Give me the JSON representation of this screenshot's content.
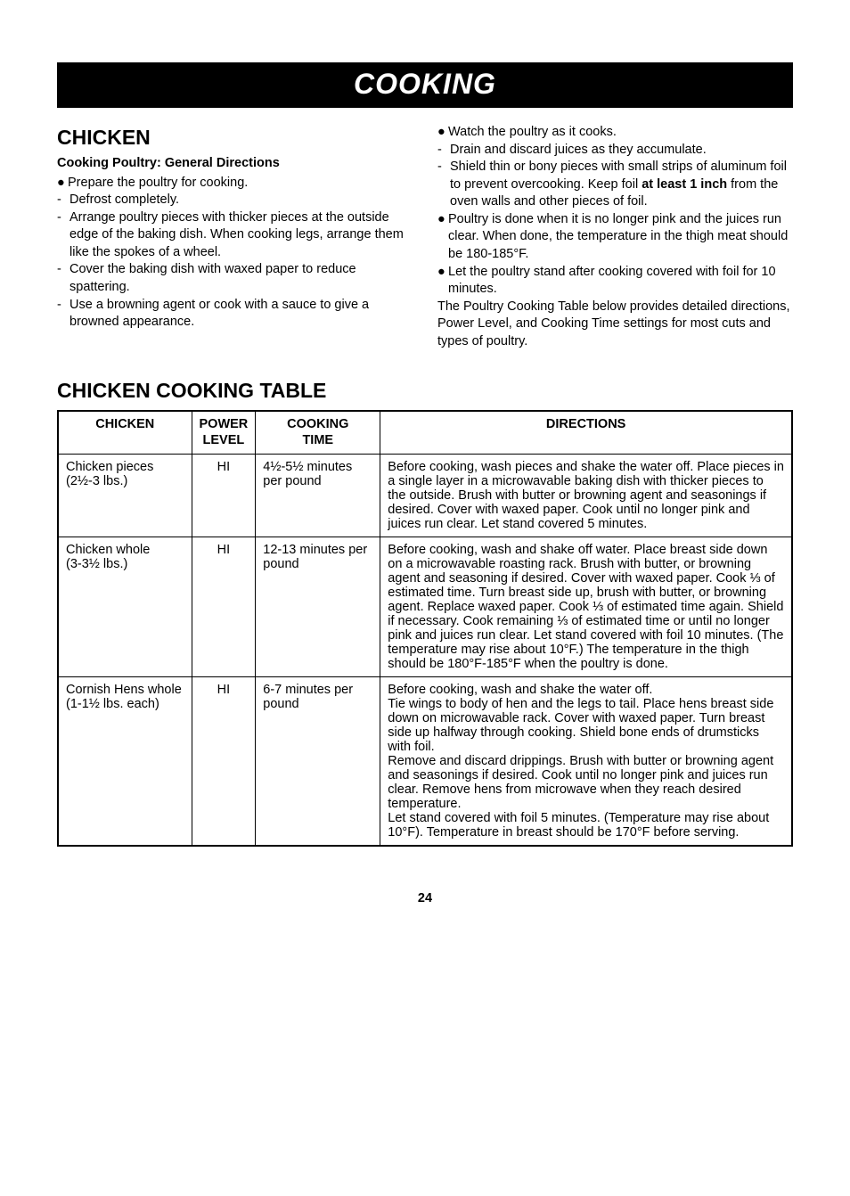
{
  "banner": "COOKING",
  "left": {
    "title": "CHICKEN",
    "subtitle": "Cooking Poultry: General Directions",
    "items": [
      {
        "m": "●",
        "t": "Prepare the poultry for cooking."
      },
      {
        "m": "-",
        "t": "Defrost completely."
      },
      {
        "m": "-",
        "t": "Arrange poultry pieces with thicker pieces at the outside edge of the baking dish. When cooking legs, arrange them like the spokes of a wheel."
      },
      {
        "m": "-",
        "t": "Cover the baking dish with waxed paper to reduce spattering."
      },
      {
        "m": "-",
        "t": "Use a browning agent or cook with a sauce to give a browned appearance."
      }
    ]
  },
  "right": {
    "items": [
      {
        "m": "●",
        "t": "Watch the poultry as it cooks."
      },
      {
        "m": "-",
        "t": "Drain and discard juices as they accumulate."
      },
      {
        "m": "-",
        "html": "Shield thin or bony pieces with small strips of aluminum foil to prevent overcooking. Keep foil <span class=\"b\">at least 1 inch</span> from the oven walls and other pieces of foil."
      },
      {
        "m": "●",
        "t": "Poultry is done when it is no longer pink and the juices run clear. When done, the temperature in the thigh meat should be 180-185°F."
      },
      {
        "m": "●",
        "t": "Let the poultry stand after cooking covered with foil for 10 minutes."
      }
    ],
    "tail": "The Poultry Cooking Table below provides detailed directions, Power Level, and Cooking Time settings for most cuts and types of poultry."
  },
  "tableTitle": "CHICKEN COOKING TABLE",
  "table": {
    "headers": [
      "CHICKEN",
      "POWER\nLEVEL",
      "COOKING\nTIME",
      "DIRECTIONS"
    ],
    "rows": [
      {
        "chicken": "Chicken pieces\n(2½-3 lbs.)",
        "power": "HI",
        "time": "4½-5½ minutes per pound",
        "dir": "Before cooking, wash pieces and shake the water off. Place pieces in a single layer in a microwavable baking dish with thicker pieces to the outside. Brush with butter or browning agent and seasonings if desired. Cover with waxed paper. Cook until no longer pink and juices run clear. Let stand covered 5 minutes."
      },
      {
        "chicken": "Chicken whole\n(3-3½ lbs.)",
        "power": "HI",
        "time": "12-13 minutes per pound",
        "dir": "Before cooking, wash and shake off water. Place breast side down on a microwavable roasting rack. Brush with butter, or browning agent and seasoning if desired. Cover with waxed paper. Cook ⅓ of estimated time. Turn breast side up, brush with butter, or browning agent. Replace waxed paper. Cook ⅓ of estimated time again. Shield if necessary. Cook remaining ⅓ of estimated time or until no longer pink and juices run clear. Let stand covered with foil 10 minutes. (The temperature may rise about 10°F.) The temperature in the thigh should be 180°F-185°F when the poultry is done."
      },
      {
        "chicken": "Cornish Hens whole\n(1-1½ lbs. each)",
        "power": "HI",
        "time": "6-7 minutes per pound",
        "dir": "Before cooking, wash and shake the water off.\nTie wings to body of hen and the legs to tail. Place hens breast side down on microwavable rack. Cover with waxed paper. Turn breast side up halfway through cooking. Shield bone ends of drumsticks with foil.\nRemove and discard drippings. Brush with butter or browning agent and seasonings if desired. Cook until no longer pink and juices run clear. Remove hens from microwave when they reach desired temperature.\nLet stand covered with foil 5 minutes. (Temperature may rise about 10°F). Temperature in breast should be 170°F before serving."
      }
    ]
  },
  "pageNumber": "24"
}
